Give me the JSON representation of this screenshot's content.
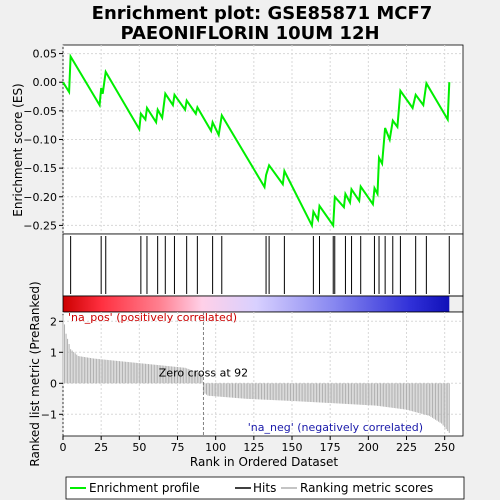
{
  "title_line1": "Enrichment plot: GSE85871 MCF7",
  "title_line2": "PAEONIFLORIN 10UM 12H",
  "colors": {
    "enrichment_line": "#00ee00",
    "hits": "#000000",
    "metric_bars": "#b0b0b0",
    "pos_label": "#cc0000",
    "neg_label": "#1a1aaa",
    "zero_line": "#808080"
  },
  "chart_data": [
    {
      "type": "line",
      "name": "enrichment-score-panel",
      "ylabel": "Enrichment score (ES)",
      "ylim": [
        -0.265,
        0.065
      ],
      "xlim": [
        0,
        262
      ],
      "yticks": [
        0.05,
        0.0,
        -0.05,
        -0.1,
        -0.15,
        -0.2,
        -0.25
      ],
      "ytick_labels": [
        "0.05",
        "0.00",
        "−0.05",
        "−0.10",
        "−0.15",
        "−0.20",
        "−0.25"
      ],
      "grid": true,
      "points": [
        [
          0,
          0.0
        ],
        [
          4,
          -0.017
        ],
        [
          5,
          0.045
        ],
        [
          24,
          -0.04
        ],
        [
          25,
          -0.01
        ],
        [
          26,
          -0.02
        ],
        [
          28,
          0.018
        ],
        [
          50,
          -0.082
        ],
        [
          51,
          -0.055
        ],
        [
          54,
          -0.065
        ],
        [
          55,
          -0.045
        ],
        [
          61,
          -0.07
        ],
        [
          62,
          -0.048
        ],
        [
          65,
          -0.062
        ],
        [
          67,
          -0.02
        ],
        [
          72,
          -0.04
        ],
        [
          73,
          -0.022
        ],
        [
          80,
          -0.048
        ],
        [
          81,
          -0.032
        ],
        [
          87,
          -0.055
        ],
        [
          88,
          -0.044
        ],
        [
          97,
          -0.085
        ],
        [
          98,
          -0.07
        ],
        [
          102,
          -0.092
        ],
        [
          104,
          -0.058
        ],
        [
          132,
          -0.183
        ],
        [
          133,
          -0.162
        ],
        [
          135,
          -0.145
        ],
        [
          144,
          -0.178
        ],
        [
          145,
          -0.155
        ],
        [
          163,
          -0.25
        ],
        [
          164,
          -0.226
        ],
        [
          167,
          -0.24
        ],
        [
          168,
          -0.216
        ],
        [
          177,
          -0.25
        ],
        [
          178,
          -0.2
        ],
        [
          184,
          -0.218
        ],
        [
          185,
          -0.195
        ],
        [
          188,
          -0.21
        ],
        [
          189,
          -0.187
        ],
        [
          194,
          -0.207
        ],
        [
          195,
          -0.182
        ],
        [
          203,
          -0.213
        ],
        [
          204,
          -0.185
        ],
        [
          206,
          -0.195
        ],
        [
          207,
          -0.132
        ],
        [
          209,
          -0.142
        ],
        [
          211,
          -0.08
        ],
        [
          214,
          -0.1
        ],
        [
          216,
          -0.067
        ],
        [
          219,
          -0.078
        ],
        [
          221,
          -0.015
        ],
        [
          229,
          -0.045
        ],
        [
          231,
          -0.022
        ],
        [
          236,
          -0.04
        ],
        [
          238,
          -0.002
        ],
        [
          252,
          -0.065
        ],
        [
          253,
          0.0
        ]
      ]
    },
    {
      "type": "scatter",
      "name": "hits-panel",
      "hit_ranks": [
        5,
        25,
        28,
        51,
        55,
        62,
        67,
        73,
        81,
        88,
        98,
        104,
        133,
        135,
        145,
        164,
        168,
        177,
        178,
        185,
        189,
        195,
        204,
        207,
        211,
        216,
        221,
        231,
        238,
        253
      ]
    },
    {
      "type": "heatmap",
      "name": "rank-color-strip",
      "stops": [
        "#cc0000",
        "#ff3040",
        "#ff8090",
        "#ffd0e8",
        "#d8d0ff",
        "#8888f0",
        "#3030d8",
        "#1010b8"
      ]
    },
    {
      "type": "bar",
      "name": "ranked-list-metric-panel",
      "ylabel": "Ranked list metric (PreRanked)",
      "xlabel": "Rank in Ordered Dataset",
      "ylim": [
        -1.7,
        2.3
      ],
      "yticks": [
        2,
        1,
        0,
        -1
      ],
      "ytick_labels": [
        "2",
        "1",
        "0",
        "−1"
      ],
      "xticks": [
        0,
        25,
        50,
        75,
        100,
        125,
        150,
        175,
        200,
        225,
        250
      ],
      "xtick_labels": [
        "0",
        "25",
        "50",
        "75",
        "100",
        "125",
        "150",
        "175",
        "200",
        "225",
        "250"
      ],
      "n_ranks": 253,
      "metric_profile": [
        [
          0,
          2.2
        ],
        [
          2,
          1.6
        ],
        [
          5,
          1.1
        ],
        [
          10,
          0.88
        ],
        [
          20,
          0.8
        ],
        [
          40,
          0.7
        ],
        [
          60,
          0.6
        ],
        [
          80,
          0.5
        ],
        [
          91,
          0.3
        ],
        [
          92,
          -0.3
        ],
        [
          95,
          -0.4
        ],
        [
          120,
          -0.5
        ],
        [
          150,
          -0.57
        ],
        [
          180,
          -0.65
        ],
        [
          205,
          -0.72
        ],
        [
          225,
          -0.85
        ],
        [
          240,
          -1.05
        ],
        [
          248,
          -1.3
        ],
        [
          253,
          -1.6
        ]
      ],
      "zero_cross_rank": 92,
      "zero_cross_label": "Zero cross at 92",
      "pos_label": "'na_pos' (positively correlated)",
      "neg_label": "'na_neg' (negatively correlated)"
    }
  ],
  "legend": {
    "items": [
      {
        "label": "Enrichment profile",
        "color": "#00ee00",
        "kind": "line"
      },
      {
        "label": "Hits",
        "color": "#000000",
        "kind": "line"
      },
      {
        "label": "Ranking metric scores",
        "color": "#b0b0b0",
        "kind": "line"
      }
    ]
  }
}
